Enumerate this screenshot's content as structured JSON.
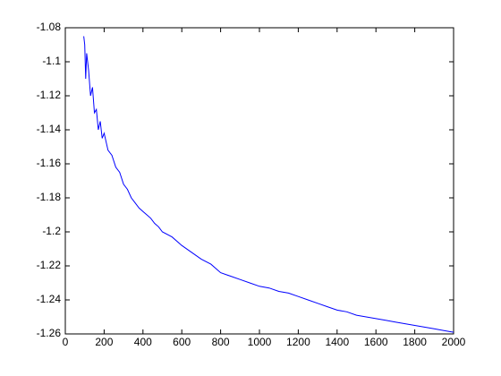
{
  "chart_data": {
    "type": "line",
    "x": [
      95,
      100,
      105,
      110,
      120,
      130,
      140,
      150,
      160,
      170,
      180,
      190,
      200,
      220,
      240,
      260,
      280,
      300,
      320,
      340,
      360,
      380,
      400,
      420,
      440,
      460,
      480,
      500,
      550,
      600,
      650,
      700,
      750,
      800,
      850,
      900,
      950,
      1000,
      1050,
      1100,
      1150,
      1200,
      1250,
      1300,
      1350,
      1400,
      1450,
      1500,
      1550,
      1600,
      1650,
      1700,
      1750,
      1800,
      1850,
      1900,
      1950,
      2000
    ],
    "series": [
      {
        "color": "#0000ff",
        "values": [
          -1.085,
          -1.09,
          -1.11,
          -1.095,
          -1.105,
          -1.12,
          -1.115,
          -1.13,
          -1.128,
          -1.14,
          -1.135,
          -1.145,
          -1.142,
          -1.152,
          -1.155,
          -1.162,
          -1.165,
          -1.172,
          -1.175,
          -1.18,
          -1.183,
          -1.186,
          -1.188,
          -1.19,
          -1.192,
          -1.195,
          -1.197,
          -1.2,
          -1.203,
          -1.208,
          -1.212,
          -1.216,
          -1.219,
          -1.224,
          -1.226,
          -1.228,
          -1.23,
          -1.232,
          -1.233,
          -1.235,
          -1.236,
          -1.238,
          -1.24,
          -1.242,
          -1.244,
          -1.246,
          -1.247,
          -1.249,
          -1.25,
          -1.251,
          -1.252,
          -1.253,
          -1.254,
          -1.255,
          -1.256,
          -1.257,
          -1.258,
          -1.259
        ]
      }
    ],
    "xlim": [
      0,
      2000
    ],
    "xticks": [
      0,
      200,
      400,
      600,
      800,
      1000,
      1200,
      1400,
      1600,
      1800,
      2000
    ],
    "ylim": [
      -1.26,
      -1.08
    ],
    "yticks": [
      -1.26,
      -1.24,
      -1.22,
      -1.2,
      -1.18,
      -1.16,
      -1.14,
      -1.12,
      -1.1,
      -1.08
    ],
    "grid": false
  }
}
